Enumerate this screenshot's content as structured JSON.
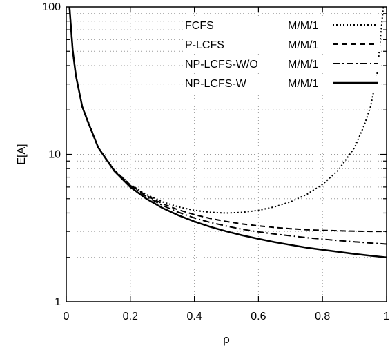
{
  "chart_data": {
    "type": "line",
    "title": "",
    "xlabel": "ρ",
    "ylabel": "E[A]",
    "xlim": [
      0,
      1
    ],
    "ylim": [
      1,
      100
    ],
    "yscale": "log",
    "grid": true,
    "legend_position": "top-right",
    "xticks": [
      "0",
      "0.2",
      "0.4",
      "0.6",
      "0.8",
      "1"
    ],
    "yticks": [
      "1",
      "10",
      "100"
    ],
    "series": [
      {
        "name": "FCFS",
        "queue": "M/M/1",
        "style": "dotted",
        "x": [
          0.01,
          0.02,
          0.03,
          0.05,
          0.07,
          0.1,
          0.15,
          0.2,
          0.25,
          0.3,
          0.35,
          0.4,
          0.45,
          0.5,
          0.55,
          0.6,
          0.65,
          0.7,
          0.75,
          0.8,
          0.85,
          0.9,
          0.93,
          0.95,
          0.97,
          0.99
        ],
        "y": [
          101.0,
          51.0,
          34.4,
          21.1,
          16.4,
          11.1,
          7.8,
          6.25,
          5.33,
          4.76,
          4.4,
          4.17,
          4.04,
          4.0,
          4.04,
          4.17,
          4.4,
          4.76,
          5.33,
          6.25,
          7.84,
          11.1,
          15.7,
          21.1,
          34.4,
          101.0
        ]
      },
      {
        "name": "P-LCFS",
        "queue": "M/M/1",
        "style": "dashed",
        "x": [
          0.01,
          0.02,
          0.03,
          0.05,
          0.07,
          0.1,
          0.15,
          0.2,
          0.25,
          0.3,
          0.35,
          0.4,
          0.45,
          0.5,
          0.55,
          0.6,
          0.65,
          0.7,
          0.75,
          0.8,
          0.85,
          0.9,
          0.95,
          1.0
        ],
        "y": [
          101.0,
          51.0,
          34.3,
          21.0,
          16.1,
          11.1,
          7.8,
          6.2,
          5.25,
          4.63,
          4.2,
          3.9,
          3.67,
          3.5,
          3.37,
          3.27,
          3.19,
          3.13,
          3.08,
          3.05,
          3.03,
          3.01,
          3.0,
          3.0
        ]
      },
      {
        "name": "NP-LCFS-W/O",
        "queue": "M/M/1",
        "style": "dashdot",
        "x": [
          0.01,
          0.02,
          0.03,
          0.05,
          0.07,
          0.1,
          0.15,
          0.2,
          0.25,
          0.3,
          0.35,
          0.4,
          0.45,
          0.5,
          0.55,
          0.6,
          0.65,
          0.7,
          0.75,
          0.8,
          0.85,
          0.9,
          0.95,
          1.0
        ],
        "y": [
          101.0,
          51.0,
          34.3,
          21.0,
          16.1,
          11.1,
          7.75,
          6.15,
          5.17,
          4.5,
          4.05,
          3.7,
          3.45,
          3.26,
          3.1,
          2.98,
          2.88,
          2.8,
          2.72,
          2.66,
          2.6,
          2.55,
          2.5,
          2.46
        ]
      },
      {
        "name": "NP-LCFS-W",
        "queue": "M/M/1",
        "style": "solid",
        "x": [
          0.01,
          0.02,
          0.03,
          0.05,
          0.07,
          0.1,
          0.15,
          0.2,
          0.25,
          0.3,
          0.35,
          0.4,
          0.45,
          0.5,
          0.55,
          0.6,
          0.65,
          0.7,
          0.75,
          0.8,
          0.85,
          0.9,
          0.95,
          1.0
        ],
        "y": [
          101.0,
          51.0,
          34.3,
          21.0,
          16.1,
          11.1,
          7.7,
          6.0,
          5.0,
          4.33,
          3.86,
          3.5,
          3.22,
          3.0,
          2.82,
          2.67,
          2.54,
          2.43,
          2.33,
          2.25,
          2.18,
          2.11,
          2.05,
          2.0
        ]
      }
    ]
  }
}
